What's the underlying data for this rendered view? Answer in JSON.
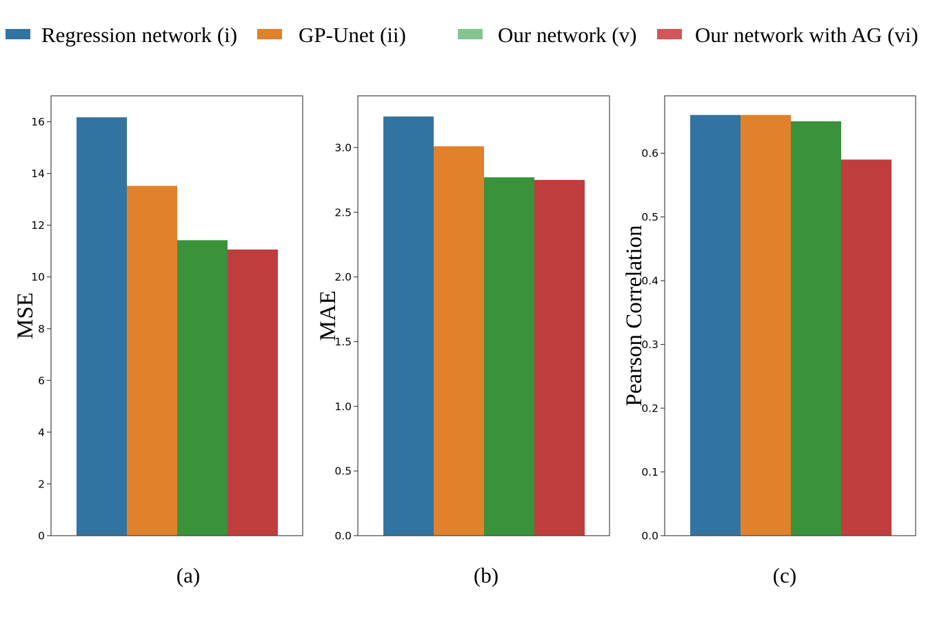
{
  "legend": [
    {
      "label": "Regression network (i)",
      "color": "#3274a1"
    },
    {
      "label": "GP-Unet (ii)",
      "color": "#e1812c"
    },
    {
      "label": "Our network (v)",
      "color": "#82c68e"
    },
    {
      "label": "Our network with AG (vi)",
      "color": "#d05757"
    }
  ],
  "chart_data": [
    {
      "type": "bar",
      "caption": "(a)",
      "ylabel": "MSE",
      "ylim": [
        0,
        17
      ],
      "yticks": [
        0,
        2,
        4,
        6,
        8,
        10,
        12,
        14,
        16
      ],
      "ytick_labels": [
        "0",
        "2",
        "4",
        "6",
        "8",
        "10",
        "12",
        "14",
        "16"
      ],
      "series": [
        {
          "name": "Regression network (i)",
          "value": 16.17,
          "color": "#3274a1"
        },
        {
          "name": "GP-Unet (ii)",
          "value": 13.52,
          "color": "#e1812c"
        },
        {
          "name": "Our network (v)",
          "value": 11.42,
          "color": "#3a923a"
        },
        {
          "name": "Our network with AG (vi)",
          "value": 11.06,
          "color": "#c03d3e"
        }
      ]
    },
    {
      "type": "bar",
      "caption": "(b)",
      "ylabel": "MAE",
      "ylim": [
        0,
        3.4
      ],
      "yticks": [
        0,
        0.5,
        1.0,
        1.5,
        2.0,
        2.5,
        3.0
      ],
      "ytick_labels": [
        "0.0",
        "0.5",
        "1.0",
        "1.5",
        "2.0",
        "2.5",
        "3.0"
      ],
      "series": [
        {
          "name": "Regression network (i)",
          "value": 3.24,
          "color": "#3274a1"
        },
        {
          "name": "GP-Unet (ii)",
          "value": 3.01,
          "color": "#e1812c"
        },
        {
          "name": "Our network (v)",
          "value": 2.77,
          "color": "#3a923a"
        },
        {
          "name": "Our network with AG (vi)",
          "value": 2.75,
          "color": "#c03d3e"
        }
      ]
    },
    {
      "type": "bar",
      "caption": "(c)",
      "ylabel": "Pearson Correlation",
      "ylim": [
        0,
        0.69
      ],
      "yticks": [
        0,
        0.1,
        0.2,
        0.3,
        0.4,
        0.5,
        0.6
      ],
      "ytick_labels": [
        "0.0",
        "0.1",
        "0.2",
        "0.3",
        "0.4",
        "0.5",
        "0.6"
      ],
      "series": [
        {
          "name": "Regression network (i)",
          "value": 0.66,
          "color": "#3274a1"
        },
        {
          "name": "GP-Unet (ii)",
          "value": 0.66,
          "color": "#e1812c"
        },
        {
          "name": "Our network (v)",
          "value": 0.65,
          "color": "#3a923a"
        },
        {
          "name": "Our network with AG (vi)",
          "value": 0.59,
          "color": "#c03d3e"
        }
      ]
    }
  ]
}
